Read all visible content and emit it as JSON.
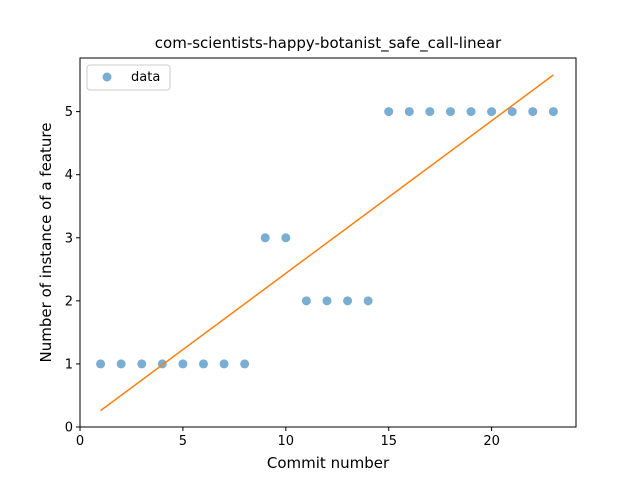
{
  "chart_data": {
    "type": "scatter",
    "title": "com-scientists-happy-botanist_safe_call-linear",
    "xlabel": "Commit number",
    "ylabel": "Number of instance of a feature",
    "xlim": [
      0,
      24.1
    ],
    "ylim": [
      0,
      5.85
    ],
    "xticks": [
      0,
      5,
      10,
      15,
      20
    ],
    "yticks": [
      0,
      1,
      2,
      3,
      4,
      5
    ],
    "grid": false,
    "legend_position": "top-left",
    "series": [
      {
        "name": "data",
        "kind": "scatter",
        "color": "#1f77b4",
        "x": [
          1,
          2,
          3,
          4,
          5,
          6,
          7,
          8,
          9,
          10,
          11,
          12,
          13,
          14,
          15,
          16,
          17,
          18,
          19,
          20,
          21,
          22,
          23
        ],
        "y": [
          1,
          1,
          1,
          1,
          1,
          1,
          1,
          1,
          3,
          3,
          2,
          2,
          2,
          2,
          5,
          5,
          5,
          5,
          5,
          5,
          5,
          5,
          5
        ]
      },
      {
        "kind": "line",
        "color": "#ff7f0e",
        "x": [
          1,
          23
        ],
        "y": [
          0.26,
          5.58
        ]
      }
    ]
  }
}
